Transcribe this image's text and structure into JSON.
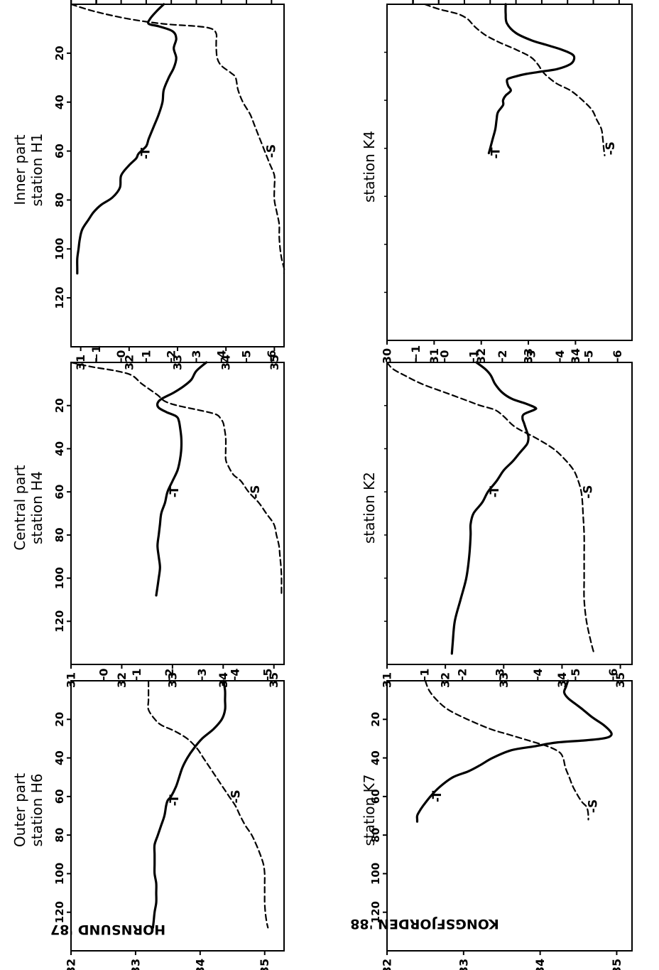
{
  "figure": {
    "group_labels": [
      {
        "text": "HORNSUND '87",
        "upside_down": true
      },
      {
        "text": "KONGSFJORDEN '88",
        "upside_down": true
      }
    ]
  },
  "chart_data": [
    {
      "type": "line",
      "group": "HORNSUND '87",
      "title_lines": [
        "Inner part",
        "station H1"
      ],
      "xlim": [
        0,
        140
      ],
      "ylim": [
        -2,
        6.5
      ],
      "y2lim": [
        30.8,
        35.2
      ],
      "xticks": [
        20,
        40,
        60,
        80,
        100,
        120
      ],
      "yticks": [
        -2,
        -1,
        0,
        1,
        2,
        3,
        4,
        5,
        6
      ],
      "y2ticks": [
        31,
        32,
        33,
        34,
        35
      ],
      "series": [
        {
          "name": "T",
          "axis": "left",
          "style": "solid",
          "label_at": 61,
          "x": [
            0,
            3,
            6,
            8,
            9,
            11,
            14,
            18,
            22,
            26,
            30,
            35,
            40,
            45,
            50,
            55,
            58,
            61,
            63,
            66,
            70,
            75,
            79,
            82,
            85,
            88,
            92,
            96,
            100,
            104,
            108,
            110
          ],
          "y": [
            1.7,
            1.4,
            1.15,
            1.1,
            1.5,
            2.05,
            2.2,
            2.1,
            2.2,
            2.1,
            1.9,
            1.7,
            1.65,
            1.5,
            1.3,
            1.1,
            1.0,
            0.7,
            0.6,
            0.3,
            0.0,
            -0.05,
            -0.35,
            -0.8,
            -1.1,
            -1.3,
            -1.55,
            -1.65,
            -1.7,
            -1.75,
            -1.75,
            -1.75
          ]
        },
        {
          "name": "S",
          "axis": "right",
          "style": "dashed",
          "label_at": 60,
          "x": [
            0,
            3,
            6,
            8,
            9,
            10,
            12,
            15,
            18,
            22,
            25,
            28,
            30,
            35,
            40,
            45,
            50,
            55,
            60,
            65,
            70,
            75,
            80,
            85,
            90,
            95,
            100,
            104,
            108,
            110
          ],
          "y": [
            30.8,
            31.3,
            32.0,
            32.7,
            33.4,
            33.7,
            33.8,
            33.8,
            33.8,
            33.82,
            33.9,
            34.1,
            34.2,
            34.25,
            34.35,
            34.5,
            34.6,
            34.7,
            34.8,
            34.9,
            35.0,
            35.0,
            35.0,
            35.05,
            35.1,
            35.1,
            35.12,
            35.15,
            35.2,
            35.2
          ]
        }
      ]
    },
    {
      "type": "line",
      "group": "HORNSUND '87",
      "title_lines": [
        "Central part",
        "station H4"
      ],
      "xlim": [
        0,
        140
      ],
      "ylim": [
        -2,
        6.5
      ],
      "y2lim": [
        31,
        35.2
      ],
      "xticks": [
        20,
        40,
        60,
        80,
        100,
        120
      ],
      "yticks": [
        -1,
        0,
        1,
        2,
        3,
        4,
        5,
        6
      ],
      "y2ticks": [
        31,
        32,
        33,
        34,
        35
      ],
      "series": [
        {
          "name": "T",
          "axis": "left",
          "style": "solid",
          "label_at": 62,
          "x": [
            0,
            4,
            8,
            11,
            14,
            17,
            19,
            21,
            23,
            25,
            27,
            30,
            35,
            40,
            45,
            50,
            55,
            60,
            65,
            70,
            75,
            80,
            85,
            90,
            95,
            100,
            104,
            108
          ],
          "y": [
            3.4,
            3.0,
            2.8,
            2.5,
            2.1,
            1.6,
            1.45,
            1.5,
            1.8,
            2.2,
            2.3,
            2.35,
            2.4,
            2.4,
            2.35,
            2.25,
            2.05,
            1.85,
            1.75,
            1.6,
            1.55,
            1.5,
            1.45,
            1.5,
            1.55,
            1.5,
            1.45,
            1.4
          ]
        },
        {
          "name": "S",
          "axis": "right",
          "style": "dashed",
          "label_at": 60,
          "x": [
            0,
            2,
            4,
            6,
            10,
            15,
            18,
            20,
            22,
            24,
            26,
            28,
            30,
            35,
            40,
            45,
            48,
            52,
            55,
            60,
            65,
            70,
            75,
            80,
            85,
            90,
            95,
            100,
            105,
            108
          ],
          "y": [
            31.0,
            31.4,
            31.9,
            32.2,
            32.4,
            32.7,
            32.85,
            33.1,
            33.5,
            33.85,
            33.95,
            34.0,
            34.02,
            34.05,
            34.05,
            34.05,
            34.1,
            34.2,
            34.35,
            34.5,
            34.7,
            34.85,
            35.0,
            35.05,
            35.1,
            35.12,
            35.14,
            35.15,
            35.15,
            35.15
          ]
        }
      ]
    },
    {
      "type": "line",
      "group": "HORNSUND '87",
      "title_lines": [
        "Outer part",
        "station H6"
      ],
      "xlim": [
        0,
        140
      ],
      "ylim": [
        -1,
        5.5
      ],
      "y2lim": [
        32,
        35.3
      ],
      "xticks": [
        20,
        40,
        60,
        80,
        100,
        120
      ],
      "yticks": [
        0,
        1,
        2,
        3,
        4,
        5
      ],
      "y2ticks": [
        32,
        33,
        34,
        35
      ],
      "series": [
        {
          "name": "T",
          "axis": "left",
          "style": "solid",
          "label_at": 62,
          "x": [
            0,
            5,
            10,
            15,
            20,
            25,
            30,
            35,
            40,
            45,
            50,
            55,
            60,
            62,
            65,
            70,
            75,
            80,
            85,
            90,
            95,
            100,
            105,
            110,
            115,
            120,
            125,
            128
          ],
          "y": [
            3.65,
            3.7,
            3.7,
            3.7,
            3.6,
            3.35,
            3.0,
            2.75,
            2.55,
            2.4,
            2.3,
            2.2,
            2.05,
            1.95,
            1.9,
            1.85,
            1.75,
            1.65,
            1.55,
            1.55,
            1.55,
            1.55,
            1.6,
            1.6,
            1.6,
            1.55,
            1.52,
            1.5
          ]
        },
        {
          "name": "S",
          "axis": "right",
          "style": "dashed",
          "label_at": 60,
          "x": [
            0,
            5,
            10,
            15,
            20,
            23,
            26,
            30,
            35,
            40,
            45,
            50,
            55,
            60,
            65,
            70,
            75,
            80,
            85,
            90,
            95,
            100,
            105,
            110,
            115,
            120,
            125,
            128
          ],
          "y": [
            33.2,
            33.2,
            33.2,
            33.2,
            33.3,
            33.4,
            33.6,
            33.8,
            33.95,
            34.05,
            34.15,
            34.25,
            34.35,
            34.45,
            34.55,
            34.62,
            34.7,
            34.8,
            34.87,
            34.93,
            34.98,
            35.0,
            35.0,
            35.0,
            35.0,
            35.01,
            35.03,
            35.05
          ]
        }
      ]
    },
    {
      "type": "line",
      "group": "KONGSFJORDEN '88",
      "title_lines": [
        "station K4"
      ],
      "xlim": [
        0,
        140
      ],
      "ylim": [
        -3,
        6.5
      ],
      "y2lim": [
        30,
        35.2
      ],
      "xticks": [],
      "yticks": [
        -2,
        -1,
        0,
        1,
        2,
        3,
        4,
        5,
        6
      ],
      "y2ticks": [
        30,
        31,
        32,
        33,
        34
      ],
      "series": [
        {
          "name": "T",
          "axis": "left",
          "style": "solid",
          "label_at": 62,
          "x": [
            0,
            4,
            8,
            12,
            15,
            17,
            19,
            21,
            23,
            25,
            27,
            28,
            29,
            30,
            31,
            32,
            34,
            36,
            38,
            40,
            42,
            45,
            48,
            52,
            56,
            60,
            62
          ],
          "y": [
            1.6,
            1.6,
            1.65,
            2.0,
            2.6,
            3.2,
            3.8,
            4.2,
            4.25,
            4.1,
            3.6,
            3.0,
            2.4,
            2.0,
            1.7,
            1.65,
            1.7,
            1.8,
            1.6,
            1.5,
            1.5,
            1.3,
            1.25,
            1.2,
            1.1,
            1.0,
            0.95
          ]
        },
        {
          "name": "S",
          "axis": "right",
          "style": "dashed",
          "label_at": 60,
          "x": [
            0,
            2,
            4,
            6,
            8,
            10,
            13,
            16,
            19,
            22,
            25,
            28,
            30,
            33,
            36,
            40,
            44,
            48,
            52,
            56,
            60,
            63
          ],
          "y": [
            30.8,
            31.1,
            31.5,
            31.7,
            31.8,
            31.9,
            32.1,
            32.4,
            32.75,
            33.05,
            33.2,
            33.3,
            33.4,
            33.6,
            33.9,
            34.15,
            34.35,
            34.45,
            34.55,
            34.58,
            34.6,
            34.62
          ]
        }
      ]
    },
    {
      "type": "line",
      "group": "KONGSFJORDEN '88",
      "title_lines": [
        "station K2"
      ],
      "xlim": [
        0,
        140
      ],
      "ylim": [
        -2,
        6.5
      ],
      "y2lim": [
        31,
        35.2
      ],
      "xticks": [],
      "yticks": [
        -1,
        0,
        1,
        2,
        3,
        4,
        5,
        6
      ],
      "y2ticks": [
        31,
        32,
        33,
        34,
        35
      ],
      "series": [
        {
          "name": "T",
          "axis": "left",
          "style": "solid",
          "label_at": 62,
          "x": [
            0,
            3,
            6,
            10,
            14,
            17,
            19,
            21,
            22,
            24,
            26,
            28,
            30,
            32,
            34,
            36,
            38,
            42,
            46,
            50,
            55,
            60,
            65,
            70,
            75,
            80,
            90,
            100,
            110,
            120,
            130,
            135
          ],
          "y": [
            1.1,
            1.4,
            1.6,
            1.75,
            2.0,
            2.35,
            2.8,
            3.15,
            3.1,
            2.75,
            2.7,
            2.75,
            2.8,
            2.85,
            2.9,
            2.9,
            2.85,
            2.6,
            2.35,
            2.05,
            1.8,
            1.5,
            1.3,
            1.0,
            0.9,
            0.9,
            0.85,
            0.75,
            0.55,
            0.35,
            0.28,
            0.25
          ]
        },
        {
          "name": "S",
          "axis": "right",
          "style": "dashed",
          "label_at": 60,
          "x": [
            0,
            3,
            6,
            10,
            14,
            18,
            20,
            22,
            25,
            30,
            35,
            40,
            45,
            50,
            55,
            60,
            65,
            70,
            80,
            90,
            100,
            110,
            120,
            130,
            135
          ],
          "y": [
            31.0,
            31.1,
            31.3,
            31.6,
            32.0,
            32.4,
            32.6,
            32.85,
            33.0,
            33.2,
            33.55,
            33.85,
            34.05,
            34.2,
            34.28,
            34.33,
            34.35,
            34.36,
            34.38,
            34.38,
            34.38,
            34.38,
            34.42,
            34.5,
            34.55
          ]
        }
      ]
    },
    {
      "type": "line",
      "group": "KONGSFJORDEN '88",
      "title_lines": [
        "station K7"
      ],
      "xlim": [
        0,
        140
      ],
      "ylim": [
        0,
        6.5
      ],
      "y2lim": [
        32,
        35.2
      ],
      "xticks": [
        20,
        40,
        60,
        80,
        100,
        120
      ],
      "yticks": [
        1,
        2,
        3,
        4,
        5,
        6
      ],
      "y2ticks": [
        32,
        33,
        34,
        35
      ],
      "series": [
        {
          "name": "T",
          "axis": "left",
          "style": "solid",
          "label_at": 62,
          "x": [
            0,
            3,
            6,
            9,
            12,
            15,
            19,
            23,
            27,
            29,
            30,
            31,
            32,
            34,
            36,
            40,
            44,
            47,
            50,
            55,
            60,
            65,
            68,
            70,
            72,
            73
          ],
          "y": [
            4.8,
            4.75,
            4.7,
            4.8,
            5.0,
            5.2,
            5.45,
            5.75,
            5.95,
            5.9,
            5.7,
            5.2,
            4.5,
            3.9,
            3.3,
            2.8,
            2.45,
            2.15,
            1.75,
            1.4,
            1.15,
            0.95,
            0.85,
            0.8,
            0.8,
            0.8
          ]
        },
        {
          "name": "S",
          "axis": "right",
          "style": "dashed",
          "label_at": 65,
          "x": [
            0,
            5,
            10,
            15,
            20,
            25,
            28,
            31,
            34,
            37,
            40,
            45,
            50,
            55,
            60,
            63,
            65,
            67,
            70,
            72
          ],
          "y": [
            32.5,
            32.55,
            32.65,
            32.8,
            33.05,
            33.35,
            33.6,
            33.85,
            34.1,
            34.25,
            34.3,
            34.33,
            34.38,
            34.43,
            34.5,
            34.55,
            34.6,
            34.62,
            34.63,
            34.63
          ]
        }
      ]
    }
  ]
}
